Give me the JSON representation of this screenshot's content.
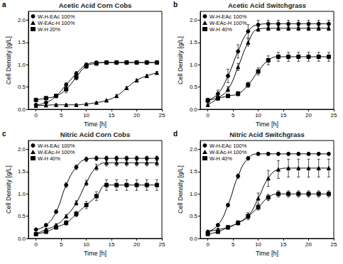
{
  "chart_data": [
    {
      "type": "line",
      "annotation": "a",
      "title": "Acetic Acid Corn Cobs",
      "x_label": "Time [h]",
      "y_label": "Cell Density [g/L]",
      "x": [
        0,
        2,
        4,
        6,
        8,
        10,
        12,
        14,
        16,
        18,
        20,
        22,
        24
      ],
      "xlim": [
        -1.5,
        25
      ],
      "xticks": [
        0,
        5,
        10,
        15,
        20,
        25
      ],
      "ylim": [
        0,
        2.2
      ],
      "yticks": [
        {
          "value": 0,
          "label": "0.0"
        },
        {
          "value": 0.5,
          "label": "0.5"
        },
        {
          "value": 1,
          "label": "1.0"
        },
        {
          "value": 1.5,
          "label": "1.5"
        },
        {
          "value": 2,
          "label": "2.0"
        }
      ],
      "legend": "upper left",
      "grid": false,
      "line_style": "solid",
      "series": [
        {
          "name": "W-H-EAc 100%",
          "color": "#000000",
          "marker": "circle",
          "values": [
            0.1,
            0.15,
            0.3,
            0.55,
            0.8,
            1.0,
            1.05,
            1.05,
            1.05,
            1.05,
            1.05,
            1.05,
            1.05
          ],
          "errors": [
            0.02,
            0.02,
            0.03,
            0.05,
            0.05,
            0.04,
            0.03,
            0.03,
            0.03,
            0.03,
            0.03,
            0.03,
            0.03
          ]
        },
        {
          "name": "W-EAc-H 100%",
          "color": "#000000",
          "marker": "triangle",
          "values": [
            0.08,
            0.09,
            0.1,
            0.1,
            0.1,
            0.12,
            0.15,
            0.2,
            0.3,
            0.48,
            0.65,
            0.75,
            0.82
          ],
          "errors": [
            0.02,
            0.02,
            0.02,
            0.02,
            0.02,
            0.02,
            0.02,
            0.02,
            0.03,
            0.03,
            0.03,
            0.03,
            0.03
          ]
        },
        {
          "name": "W-H 20%",
          "color": "#000000",
          "marker": "square",
          "values": [
            0.21,
            0.25,
            0.3,
            0.45,
            0.72,
            0.97,
            1.03,
            1.05,
            1.05,
            1.05,
            1.05,
            1.05,
            1.05
          ],
          "errors": [
            0.02,
            0.03,
            0.04,
            0.08,
            0.06,
            0.05,
            0.04,
            0.04,
            0.04,
            0.04,
            0.04,
            0.04,
            0.04
          ]
        }
      ]
    },
    {
      "type": "line",
      "annotation": "b",
      "title": "Acetic Acid Switchgrass",
      "x_label": "Time [h]",
      "y_label": "Cell Density [g/L]",
      "x": [
        0,
        2,
        4,
        6,
        8,
        10,
        12,
        14,
        16,
        18,
        20,
        22,
        24
      ],
      "xlim": [
        -1.5,
        25
      ],
      "xticks": [
        0,
        5,
        10,
        15,
        20,
        25
      ],
      "ylim": [
        0,
        2.2
      ],
      "yticks": [
        {
          "value": 0,
          "label": "0.0"
        },
        {
          "value": 0.5,
          "label": "0.5"
        },
        {
          "value": 1,
          "label": "1.0"
        },
        {
          "value": 1.5,
          "label": "1.5"
        },
        {
          "value": 2,
          "label": "2.0"
        }
      ],
      "legend": "upper left",
      "grid": false,
      "line_style": "solid",
      "series": [
        {
          "name": "W-H-EAc 100%",
          "color": "#000000",
          "marker": "circle",
          "values": [
            0.2,
            0.35,
            0.75,
            1.3,
            1.75,
            1.9,
            1.92,
            1.92,
            1.92,
            1.92,
            1.92,
            1.92,
            1.92
          ],
          "errors": [
            0.05,
            0.08,
            0.15,
            0.15,
            0.15,
            0.1,
            0.08,
            0.08,
            0.08,
            0.08,
            0.08,
            0.08,
            0.08
          ]
        },
        {
          "name": "W-EAc-H 100%",
          "color": "#000000",
          "marker": "triangle",
          "values": [
            0.1,
            0.25,
            0.45,
            0.95,
            1.5,
            1.8,
            1.82,
            1.82,
            1.82,
            1.82,
            1.82,
            1.82,
            1.82
          ],
          "errors": [
            0.03,
            0.05,
            0.06,
            0.08,
            0.08,
            0.05,
            0.05,
            0.05,
            0.05,
            0.05,
            0.05,
            0.05,
            0.05
          ]
        },
        {
          "name": "W-H 40%",
          "color": "#000000",
          "marker": "square",
          "values": [
            0.2,
            0.25,
            0.3,
            0.35,
            0.55,
            0.85,
            1.1,
            1.18,
            1.18,
            1.18,
            1.18,
            1.18,
            1.18
          ],
          "errors": [
            0.03,
            0.03,
            0.04,
            0.05,
            0.06,
            0.08,
            0.1,
            0.1,
            0.1,
            0.1,
            0.1,
            0.1,
            0.1
          ]
        }
      ]
    },
    {
      "type": "line",
      "annotation": "c",
      "title": "Nitric Acid Corn Cobs",
      "x_label": "Time [h]",
      "y_label": "Cell Density [g/L]",
      "x": [
        0,
        2,
        4,
        6,
        8,
        10,
        12,
        14,
        16,
        18,
        20,
        22,
        24
      ],
      "xlim": [
        -1.5,
        25
      ],
      "xticks": [
        0,
        5,
        10,
        15,
        20,
        25
      ],
      "ylim": [
        0,
        2.2
      ],
      "yticks": [
        {
          "value": 0,
          "label": "0.0"
        },
        {
          "value": 0.5,
          "label": "0.5"
        },
        {
          "value": 1,
          "label": "1.0"
        },
        {
          "value": 1.5,
          "label": "1.5"
        },
        {
          "value": 2,
          "label": "2.0"
        }
      ],
      "legend": "upper left",
      "grid": false,
      "line_style": "solid",
      "series": [
        {
          "name": "W-H-EAc 100%",
          "color": "#000000",
          "marker": "circle",
          "values": [
            0.2,
            0.3,
            0.6,
            1.2,
            1.6,
            1.78,
            1.8,
            1.8,
            1.8,
            1.8,
            1.8,
            1.8,
            1.8
          ],
          "errors": [
            0.02,
            0.03,
            0.04,
            0.05,
            0.05,
            0.05,
            0.05,
            0.05,
            0.05,
            0.05,
            0.05,
            0.05,
            0.05
          ]
        },
        {
          "name": "W-EAc-H 100%",
          "color": "#000000",
          "marker": "triangle",
          "values": [
            0.1,
            0.2,
            0.3,
            0.5,
            0.8,
            1.25,
            1.6,
            1.7,
            1.7,
            1.7,
            1.7,
            1.7,
            1.7
          ],
          "errors": [
            0.02,
            0.03,
            0.03,
            0.04,
            0.05,
            0.06,
            0.07,
            0.07,
            0.07,
            0.07,
            0.07,
            0.07,
            0.07
          ]
        },
        {
          "name": "W-H 40%",
          "color": "#000000",
          "marker": "square",
          "values": [
            0.1,
            0.15,
            0.25,
            0.35,
            0.55,
            0.75,
            0.95,
            1.2,
            1.2,
            1.2,
            1.2,
            1.2,
            1.2
          ],
          "errors": [
            0.02,
            0.03,
            0.04,
            0.05,
            0.06,
            0.08,
            0.1,
            0.12,
            0.12,
            0.12,
            0.12,
            0.12,
            0.12
          ]
        }
      ]
    },
    {
      "type": "line",
      "annotation": "d",
      "title": "Nitric Acid Switchgrass",
      "x_label": "Time [h]",
      "y_label": "Cell Density [g/L]",
      "x": [
        0,
        2,
        4,
        6,
        8,
        10,
        12,
        14,
        16,
        18,
        20,
        22,
        24
      ],
      "xlim": [
        -1.5,
        25
      ],
      "xticks": [
        0,
        5,
        10,
        15,
        20,
        25
      ],
      "ylim": [
        0,
        2.2
      ],
      "yticks": [
        {
          "value": 0,
          "label": "0.0"
        },
        {
          "value": 0.5,
          "label": "0.5"
        },
        {
          "value": 1,
          "label": "1.0"
        },
        {
          "value": 1.5,
          "label": "1.5"
        },
        {
          "value": 2,
          "label": "2.0"
        }
      ],
      "legend": "upper left",
      "grid": false,
      "line_style": "solid",
      "series": [
        {
          "name": "W-H-EAc 100%",
          "color": "#000000",
          "marker": "circle",
          "values": [
            0.15,
            0.3,
            0.75,
            1.4,
            1.8,
            1.9,
            1.9,
            1.9,
            1.9,
            1.9,
            1.9,
            1.9,
            1.9
          ],
          "errors": [
            0.02,
            0.03,
            0.04,
            0.05,
            0.04,
            0.03,
            0.03,
            0.03,
            0.03,
            0.03,
            0.03,
            0.03,
            0.03
          ]
        },
        {
          "name": "W-EAc-H 100%",
          "color": "#000000",
          "marker": "triangle",
          "values": [
            0.15,
            0.2,
            0.25,
            0.35,
            0.5,
            0.9,
            1.35,
            1.55,
            1.58,
            1.58,
            1.58,
            1.58,
            1.58
          ],
          "errors": [
            0.02,
            0.03,
            0.04,
            0.05,
            0.08,
            0.12,
            0.18,
            0.2,
            0.2,
            0.2,
            0.2,
            0.2,
            0.2
          ]
        },
        {
          "name": "W-H 40%",
          "color": "#000000",
          "marker": "square",
          "values": [
            0.1,
            0.15,
            0.25,
            0.35,
            0.5,
            0.7,
            0.92,
            1.0,
            1.0,
            1.0,
            1.0,
            1.0,
            1.0
          ],
          "errors": [
            0.02,
            0.02,
            0.03,
            0.04,
            0.05,
            0.06,
            0.07,
            0.07,
            0.07,
            0.07,
            0.07,
            0.07,
            0.07
          ]
        }
      ]
    }
  ]
}
